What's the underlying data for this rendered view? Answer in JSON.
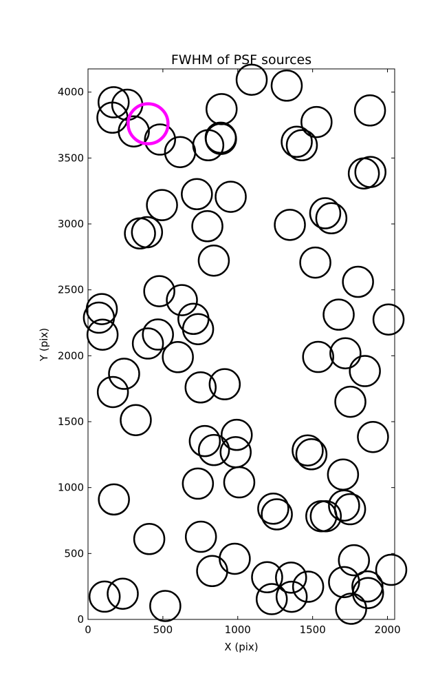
{
  "chart_data": {
    "type": "scatter",
    "title": "FWHM of PSF sources",
    "xlabel": "X (pix)",
    "ylabel": "Y (pix)",
    "xlim": [
      0,
      2048
    ],
    "ylim": [
      0,
      4176
    ],
    "x_ticks": [
      0,
      500,
      1000,
      1500,
      2000
    ],
    "y_ticks": [
      0,
      500,
      1000,
      1500,
      2000,
      2500,
      3000,
      3500,
      4000
    ],
    "x_tick_labels": [
      "0",
      "500",
      "1000",
      "1500",
      "2000"
    ],
    "y_tick_labels": [
      "0",
      "500",
      "1000",
      "1500",
      "2000",
      "2500",
      "3000",
      "3500",
      "4000"
    ],
    "marker": "open circle",
    "grid": false,
    "series": [
      {
        "color": "#000000",
        "points": [
          [
            171,
            3923
          ],
          [
            163,
            3806
          ],
          [
            262,
            3904
          ],
          [
            306,
            3702
          ],
          [
            481,
            3640
          ],
          [
            615,
            3545
          ],
          [
            803,
            3597
          ],
          [
            886,
            3654
          ],
          [
            888,
            3645
          ],
          [
            892,
            3871
          ],
          [
            1093,
            4094
          ],
          [
            1327,
            4049
          ],
          [
            1394,
            3623
          ],
          [
            1428,
            3597
          ],
          [
            1526,
            3773
          ],
          [
            1883,
            3861
          ],
          [
            1842,
            3383
          ],
          [
            1886,
            3394
          ],
          [
            494,
            3143
          ],
          [
            727,
            3226
          ],
          [
            797,
            2983
          ],
          [
            953,
            3206
          ],
          [
            347,
            2928
          ],
          [
            394,
            2937
          ],
          [
            840,
            2722
          ],
          [
            1348,
            2993
          ],
          [
            1584,
            3081
          ],
          [
            1625,
            3043
          ],
          [
            1518,
            2707
          ],
          [
            1803,
            2561
          ],
          [
            476,
            2490
          ],
          [
            627,
            2422
          ],
          [
            704,
            2280
          ],
          [
            735,
            2202
          ],
          [
            92,
            2354
          ],
          [
            73,
            2289
          ],
          [
            97,
            2160
          ],
          [
            400,
            2093
          ],
          [
            467,
            2161
          ],
          [
            600,
            1990
          ],
          [
            1674,
            2312
          ],
          [
            1719,
            2019
          ],
          [
            1849,
            1884
          ],
          [
            2007,
            2275
          ],
          [
            1537,
            1991
          ],
          [
            241,
            1863
          ],
          [
            166,
            1725
          ],
          [
            319,
            1512
          ],
          [
            752,
            1760
          ],
          [
            913,
            1784
          ],
          [
            1752,
            1651
          ],
          [
            1903,
            1384
          ],
          [
            780,
            1353
          ],
          [
            841,
            1285
          ],
          [
            986,
            1269
          ],
          [
            993,
            1400
          ],
          [
            1467,
            1282
          ],
          [
            1492,
            1253
          ],
          [
            734,
            1030
          ],
          [
            1010,
            1040
          ],
          [
            173,
            910
          ],
          [
            409,
            610
          ],
          [
            754,
            627
          ],
          [
            829,
            367
          ],
          [
            980,
            460
          ],
          [
            1237,
            840
          ],
          [
            1261,
            797
          ],
          [
            1703,
            1099
          ],
          [
            1710,
            864
          ],
          [
            1750,
            836
          ],
          [
            1558,
            783
          ],
          [
            1588,
            783
          ],
          [
            1776,
            449
          ],
          [
            1710,
            283
          ],
          [
            1196,
            320
          ],
          [
            1356,
            317
          ],
          [
            1227,
            154
          ],
          [
            1360,
            172
          ],
          [
            1470,
            248
          ],
          [
            1866,
            250
          ],
          [
            1870,
            200
          ],
          [
            1757,
            81
          ],
          [
            2025,
            376
          ],
          [
            111,
            173
          ],
          [
            232,
            195
          ],
          [
            516,
            102
          ]
        ]
      },
      {
        "color": "#ff00ff",
        "points": [
          [
            401,
            3760
          ]
        ]
      }
    ]
  }
}
